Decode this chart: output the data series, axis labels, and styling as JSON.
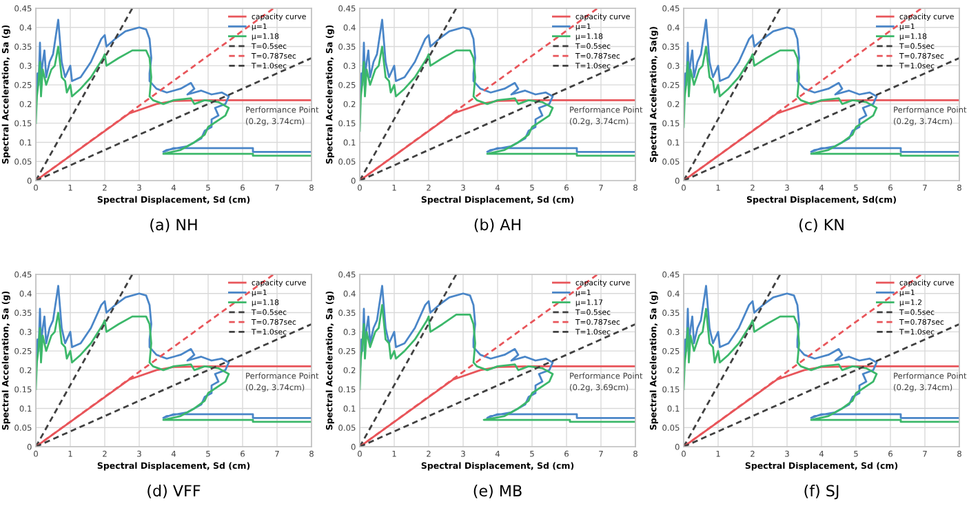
{
  "chart_data": [
    {
      "type": "line",
      "title": "(a) NH",
      "xlabel": "Spectral Displacement, Sd (cm)",
      "ylabel": "Spectral Acceleration, Sa (g)",
      "xlim": [
        0,
        8
      ],
      "ylim": [
        0,
        0.45
      ],
      "xticks": [
        0,
        1,
        2,
        3,
        4,
        5,
        6,
        7,
        8
      ],
      "yticks": [
        0,
        0.05,
        0.1,
        0.15,
        0.2,
        0.25,
        0.3,
        0.35,
        0.4,
        0.45
      ],
      "grid": true,
      "legend": "top right",
      "series": [
        {
          "name": "capacity curve",
          "color": "#e8555a",
          "x": [
            0,
            2.7,
            3.5,
            4,
            5,
            8
          ],
          "values": [
            0,
            0.175,
            0.2,
            0.208,
            0.21,
            0.21
          ]
        },
        {
          "name": "μ=1",
          "color": "#4a86c8",
          "x": [
            0,
            0.02,
            0.05,
            0.08,
            0.12,
            0.15,
            0.2,
            0.25,
            0.3,
            0.4,
            0.5,
            0.65,
            0.75,
            0.85,
            1.0,
            1.05,
            1.3,
            1.6,
            1.9,
            2.0,
            2.05,
            2.3,
            2.6,
            3.0,
            3.2,
            3.3,
            3.35,
            3.3,
            3.3,
            3.5,
            3.8,
            4.2,
            4.5,
            4.6,
            4.4,
            4.8,
            5.1,
            5.4,
            5.6,
            5.5,
            5.2,
            5.3,
            5.1,
            5.1,
            4.9,
            4.8,
            4.4,
            3.8,
            3.7,
            4.0,
            6.3,
            6.3,
            8.0
          ],
          "values": [
            0.18,
            0.22,
            0.28,
            0.25,
            0.36,
            0.27,
            0.31,
            0.34,
            0.27,
            0.31,
            0.33,
            0.42,
            0.31,
            0.27,
            0.3,
            0.26,
            0.27,
            0.31,
            0.37,
            0.38,
            0.35,
            0.37,
            0.39,
            0.4,
            0.395,
            0.37,
            0.32,
            0.28,
            0.26,
            0.24,
            0.23,
            0.24,
            0.255,
            0.24,
            0.225,
            0.235,
            0.225,
            0.23,
            0.22,
            0.2,
            0.19,
            0.17,
            0.16,
            0.14,
            0.13,
            0.11,
            0.09,
            0.08,
            0.075,
            0.085,
            0.085,
            0.075,
            0.075
          ]
        },
        {
          "name": "μ=1.18",
          "color": "#3cb86a",
          "x": [
            0,
            0.03,
            0.07,
            0.12,
            0.15,
            0.2,
            0.3,
            0.45,
            0.55,
            0.65,
            0.75,
            0.85,
            0.9,
            1.0,
            1.05,
            1.3,
            1.6,
            1.95,
            2.0,
            2.05,
            2.4,
            2.8,
            3.2,
            3.3,
            3.35,
            3.3,
            3.4,
            3.7,
            4.0,
            4.5,
            4.6,
            4.9,
            5.3,
            5.6,
            5.5,
            5.0,
            4.9,
            4.6,
            4.2,
            3.7,
            6.3,
            6.3,
            8.0
          ],
          "values": [
            0.15,
            0.22,
            0.25,
            0.31,
            0.22,
            0.29,
            0.25,
            0.29,
            0.3,
            0.35,
            0.27,
            0.26,
            0.23,
            0.25,
            0.22,
            0.24,
            0.27,
            0.32,
            0.33,
            0.3,
            0.32,
            0.34,
            0.34,
            0.32,
            0.27,
            0.22,
            0.21,
            0.2,
            0.21,
            0.215,
            0.2,
            0.21,
            0.205,
            0.19,
            0.17,
            0.14,
            0.12,
            0.1,
            0.08,
            0.07,
            0.07,
            0.065,
            0.065
          ]
        },
        {
          "name": "T=0.5sec",
          "color": "#404040",
          "line_style": "dashed",
          "x": [
            0,
            2.8
          ],
          "values": [
            0,
            0.45
          ]
        },
        {
          "name": "T=0.787sec",
          "color": "#e8555a",
          "line_style": "dashed",
          "x": [
            0,
            6.9
          ],
          "values": [
            0,
            0.45
          ]
        },
        {
          "name": "T=1.0sec",
          "color": "#404040",
          "line_style": "dashed",
          "x": [
            0,
            8
          ],
          "values": [
            0,
            0.32
          ]
        }
      ],
      "annotations": [
        "Performance Point\n(0.2g, 3.74cm)"
      ]
    },
    {
      "type": "line",
      "title": "(b) AH",
      "xlabel": "Spectral Displacement, Sd (cm)",
      "ylabel": "Spectral Acceleration, Sa (g)",
      "xlim": [
        0,
        8
      ],
      "ylim": [
        0,
        0.45
      ],
      "xticks": [
        0,
        1,
        2,
        3,
        4,
        5,
        6,
        7,
        8
      ],
      "yticks": [
        0,
        0.05,
        0.1,
        0.15,
        0.2,
        0.25,
        0.3,
        0.35,
        0.4,
        0.45
      ],
      "grid": true,
      "legend": "top right",
      "series": [
        {
          "name": "capacity curve",
          "color": "#e8555a",
          "x": [
            0,
            2.7,
            3.5,
            4,
            5,
            8
          ],
          "values": [
            0,
            0.175,
            0.2,
            0.208,
            0.21,
            0.21
          ]
        },
        {
          "name": "μ=1",
          "color": "#4a86c8",
          "x": [
            0,
            0.02,
            0.05,
            0.08,
            0.12,
            0.15,
            0.2,
            0.25,
            0.3,
            0.4,
            0.5,
            0.65,
            0.75,
            0.85,
            1.0,
            1.05,
            1.3,
            1.6,
            1.9,
            2.0,
            2.05,
            2.3,
            2.6,
            3.0,
            3.2,
            3.3,
            3.35,
            3.3,
            3.3,
            3.5,
            3.8,
            4.2,
            4.5,
            4.6,
            4.4,
            4.8,
            5.1,
            5.4,
            5.6,
            5.5,
            5.2,
            5.3,
            5.1,
            5.1,
            4.9,
            4.8,
            4.4,
            3.8,
            3.7,
            4.0,
            6.3,
            6.3,
            8.0
          ],
          "values": [
            0.18,
            0.22,
            0.28,
            0.25,
            0.36,
            0.27,
            0.31,
            0.34,
            0.27,
            0.31,
            0.33,
            0.42,
            0.31,
            0.27,
            0.3,
            0.26,
            0.27,
            0.31,
            0.37,
            0.38,
            0.35,
            0.37,
            0.39,
            0.4,
            0.395,
            0.37,
            0.32,
            0.28,
            0.26,
            0.24,
            0.23,
            0.24,
            0.255,
            0.24,
            0.225,
            0.235,
            0.225,
            0.23,
            0.22,
            0.2,
            0.19,
            0.17,
            0.16,
            0.14,
            0.13,
            0.11,
            0.09,
            0.08,
            0.075,
            0.085,
            0.085,
            0.075,
            0.075
          ]
        },
        {
          "name": "μ=1.18",
          "color": "#3cb86a",
          "x": [
            0,
            0.03,
            0.07,
            0.12,
            0.15,
            0.2,
            0.3,
            0.45,
            0.55,
            0.65,
            0.75,
            0.85,
            0.9,
            1.0,
            1.05,
            1.3,
            1.6,
            1.95,
            2.0,
            2.05,
            2.4,
            2.8,
            3.2,
            3.3,
            3.35,
            3.3,
            3.4,
            3.7,
            4.0,
            4.5,
            4.6,
            4.9,
            5.3,
            5.6,
            5.5,
            5.0,
            4.9,
            4.6,
            4.2,
            3.7,
            6.3,
            6.3,
            8.0
          ],
          "values": [
            0.13,
            0.22,
            0.25,
            0.31,
            0.22,
            0.29,
            0.25,
            0.29,
            0.3,
            0.35,
            0.27,
            0.26,
            0.23,
            0.25,
            0.22,
            0.24,
            0.27,
            0.32,
            0.33,
            0.3,
            0.32,
            0.34,
            0.34,
            0.32,
            0.27,
            0.22,
            0.21,
            0.2,
            0.21,
            0.215,
            0.2,
            0.21,
            0.205,
            0.19,
            0.17,
            0.14,
            0.12,
            0.1,
            0.08,
            0.07,
            0.07,
            0.065,
            0.065
          ]
        },
        {
          "name": "T=0.5sec",
          "color": "#404040",
          "line_style": "dashed",
          "x": [
            0,
            2.8
          ],
          "values": [
            0,
            0.45
          ]
        },
        {
          "name": "T=0.787sec",
          "color": "#e8555a",
          "line_style": "dashed",
          "x": [
            0,
            6.9
          ],
          "values": [
            0,
            0.45
          ]
        },
        {
          "name": "T=1.0sec",
          "color": "#404040",
          "line_style": "dashed",
          "x": [
            0,
            8
          ],
          "values": [
            0,
            0.32
          ]
        }
      ],
      "annotations": [
        "Performance Point\n(0.2g, 3.74cm)"
      ]
    },
    {
      "type": "line",
      "title": "(c) KN",
      "xlabel": "Spectral Displacement, Sd(cm)",
      "ylabel": "Spectral Acceleration, Sa(g)",
      "xlim": [
        0,
        8
      ],
      "ylim": [
        0,
        0.45
      ],
      "xticks": [
        0,
        1,
        2,
        3,
        4,
        5,
        6,
        7,
        8
      ],
      "yticks": [
        0,
        0.05,
        0.1,
        0.15,
        0.2,
        0.25,
        0.3,
        0.35,
        0.4,
        0.45
      ],
      "grid": true,
      "legend": "top right",
      "series": [
        {
          "name": "capacity curve",
          "color": "#e8555a",
          "x": [
            0,
            2.7,
            3.5,
            4,
            5,
            8
          ],
          "values": [
            0,
            0.175,
            0.2,
            0.208,
            0.21,
            0.21
          ]
        },
        {
          "name": "μ=1",
          "color": "#4a86c8",
          "x": [
            0,
            0.02,
            0.05,
            0.08,
            0.12,
            0.15,
            0.2,
            0.25,
            0.3,
            0.4,
            0.5,
            0.65,
            0.75,
            0.85,
            1.0,
            1.05,
            1.3,
            1.6,
            1.9,
            2.0,
            2.05,
            2.3,
            2.6,
            3.0,
            3.2,
            3.3,
            3.35,
            3.3,
            3.3,
            3.5,
            3.8,
            4.2,
            4.5,
            4.6,
            4.4,
            4.8,
            5.1,
            5.4,
            5.6,
            5.5,
            5.2,
            5.3,
            5.1,
            5.1,
            4.9,
            4.8,
            4.4,
            3.8,
            3.7,
            4.0,
            6.3,
            6.3,
            8.0
          ],
          "values": [
            0.18,
            0.22,
            0.28,
            0.25,
            0.36,
            0.27,
            0.31,
            0.34,
            0.27,
            0.31,
            0.33,
            0.42,
            0.31,
            0.27,
            0.3,
            0.26,
            0.27,
            0.31,
            0.37,
            0.38,
            0.35,
            0.37,
            0.39,
            0.4,
            0.395,
            0.37,
            0.32,
            0.28,
            0.26,
            0.24,
            0.23,
            0.24,
            0.255,
            0.24,
            0.225,
            0.235,
            0.225,
            0.23,
            0.22,
            0.2,
            0.19,
            0.17,
            0.16,
            0.14,
            0.13,
            0.11,
            0.09,
            0.08,
            0.075,
            0.085,
            0.085,
            0.075,
            0.075
          ]
        },
        {
          "name": "μ=1.18",
          "color": "#3cb86a",
          "x": [
            0,
            0.03,
            0.07,
            0.12,
            0.15,
            0.2,
            0.3,
            0.45,
            0.55,
            0.65,
            0.75,
            0.85,
            0.9,
            1.0,
            1.05,
            1.3,
            1.6,
            1.95,
            2.0,
            2.05,
            2.4,
            2.8,
            3.2,
            3.3,
            3.35,
            3.3,
            3.4,
            3.7,
            4.0,
            4.5,
            4.6,
            4.9,
            5.3,
            5.6,
            5.5,
            5.0,
            4.9,
            4.6,
            4.2,
            3.7,
            6.3,
            6.3,
            8.0
          ],
          "values": [
            0.14,
            0.22,
            0.25,
            0.31,
            0.22,
            0.29,
            0.25,
            0.29,
            0.3,
            0.35,
            0.27,
            0.26,
            0.23,
            0.25,
            0.22,
            0.24,
            0.27,
            0.32,
            0.33,
            0.3,
            0.32,
            0.34,
            0.34,
            0.32,
            0.27,
            0.22,
            0.21,
            0.2,
            0.21,
            0.215,
            0.2,
            0.21,
            0.205,
            0.19,
            0.17,
            0.14,
            0.12,
            0.1,
            0.08,
            0.07,
            0.07,
            0.065,
            0.065
          ]
        },
        {
          "name": "T=0.5sec",
          "color": "#404040",
          "line_style": "dashed",
          "x": [
            0,
            2.8
          ],
          "values": [
            0,
            0.45
          ]
        },
        {
          "name": "T=0.787sec",
          "color": "#e8555a",
          "line_style": "dashed",
          "x": [
            0,
            6.9
          ],
          "values": [
            0,
            0.45
          ]
        },
        {
          "name": "T=1.0sec",
          "color": "#404040",
          "line_style": "dashed",
          "x": [
            0,
            8
          ],
          "values": [
            0,
            0.32
          ]
        }
      ],
      "annotations": [
        "Performance Point\n(0.2g, 3.74cm)"
      ]
    },
    {
      "type": "line",
      "title": "(d) VFF",
      "xlabel": "Spectral Displacement, Sd (cm)",
      "ylabel": "Spectral Acceleration, Sa (g)",
      "xlim": [
        0,
        8
      ],
      "ylim": [
        0,
        0.45
      ],
      "xticks": [
        0,
        1,
        2,
        3,
        4,
        5,
        6,
        7,
        8
      ],
      "yticks": [
        0,
        0.05,
        0.1,
        0.15,
        0.2,
        0.25,
        0.3,
        0.35,
        0.4,
        0.45
      ],
      "grid": true,
      "legend": "top right",
      "series": [
        {
          "name": "capacity curve",
          "color": "#e8555a",
          "x": [
            0,
            2.7,
            3.5,
            4,
            5,
            8
          ],
          "values": [
            0,
            0.175,
            0.2,
            0.208,
            0.21,
            0.21
          ]
        },
        {
          "name": "μ=1",
          "color": "#4a86c8",
          "x": [
            0,
            0.02,
            0.05,
            0.08,
            0.12,
            0.15,
            0.2,
            0.25,
            0.3,
            0.4,
            0.5,
            0.65,
            0.75,
            0.85,
            1.0,
            1.05,
            1.3,
            1.6,
            1.9,
            2.0,
            2.05,
            2.3,
            2.6,
            3.0,
            3.2,
            3.3,
            3.35,
            3.3,
            3.3,
            3.5,
            3.8,
            4.2,
            4.5,
            4.6,
            4.4,
            4.8,
            5.1,
            5.4,
            5.6,
            5.5,
            5.2,
            5.3,
            5.1,
            5.1,
            4.9,
            4.8,
            4.4,
            3.8,
            3.7,
            4.0,
            6.3,
            6.3,
            8.0
          ],
          "values": [
            0.18,
            0.22,
            0.28,
            0.25,
            0.36,
            0.27,
            0.31,
            0.34,
            0.27,
            0.31,
            0.33,
            0.42,
            0.31,
            0.27,
            0.3,
            0.26,
            0.27,
            0.31,
            0.37,
            0.38,
            0.35,
            0.37,
            0.39,
            0.4,
            0.395,
            0.37,
            0.32,
            0.28,
            0.26,
            0.24,
            0.23,
            0.24,
            0.255,
            0.24,
            0.225,
            0.235,
            0.225,
            0.23,
            0.22,
            0.2,
            0.19,
            0.17,
            0.16,
            0.14,
            0.13,
            0.11,
            0.09,
            0.08,
            0.075,
            0.085,
            0.085,
            0.075,
            0.075
          ]
        },
        {
          "name": "μ=1.18",
          "color": "#3cb86a",
          "x": [
            0,
            0.03,
            0.07,
            0.12,
            0.15,
            0.2,
            0.3,
            0.45,
            0.55,
            0.65,
            0.75,
            0.85,
            0.9,
            1.0,
            1.05,
            1.3,
            1.6,
            1.95,
            2.0,
            2.05,
            2.4,
            2.8,
            3.2,
            3.3,
            3.35,
            3.3,
            3.4,
            3.7,
            4.0,
            4.5,
            4.6,
            4.9,
            5.3,
            5.6,
            5.5,
            5.0,
            4.9,
            4.6,
            4.2,
            3.7,
            6.3,
            6.3,
            8.0
          ],
          "values": [
            0.15,
            0.22,
            0.25,
            0.31,
            0.22,
            0.29,
            0.25,
            0.29,
            0.3,
            0.35,
            0.27,
            0.26,
            0.23,
            0.25,
            0.22,
            0.24,
            0.27,
            0.32,
            0.33,
            0.3,
            0.32,
            0.34,
            0.34,
            0.32,
            0.27,
            0.22,
            0.21,
            0.2,
            0.21,
            0.215,
            0.2,
            0.21,
            0.205,
            0.19,
            0.17,
            0.14,
            0.12,
            0.1,
            0.08,
            0.07,
            0.07,
            0.065,
            0.065
          ]
        },
        {
          "name": "T=0.5sec",
          "color": "#404040",
          "line_style": "dashed",
          "x": [
            0,
            2.8
          ],
          "values": [
            0,
            0.45
          ]
        },
        {
          "name": "T=0.787sec",
          "color": "#e8555a",
          "line_style": "dashed",
          "x": [
            0,
            6.9
          ],
          "values": [
            0,
            0.45
          ]
        },
        {
          "name": "T=1.0sec",
          "color": "#404040",
          "line_style": "dashed",
          "x": [
            0,
            8
          ],
          "values": [
            0,
            0.32
          ]
        }
      ],
      "annotations": [
        "Performance Point\n(0.2g, 3.74cm)"
      ]
    },
    {
      "type": "line",
      "title": "(e) MB",
      "xlabel": "Spectral Displacement, Sd (cm)",
      "ylabel": "Spectral Acceleration, Sa (g)",
      "xlim": [
        0,
        8
      ],
      "ylim": [
        0,
        0.45
      ],
      "xticks": [
        0,
        1,
        2,
        3,
        4,
        5,
        6,
        7,
        8
      ],
      "yticks": [
        0,
        0.05,
        0.1,
        0.15,
        0.2,
        0.25,
        0.3,
        0.35,
        0.4,
        0.45
      ],
      "grid": true,
      "legend": "top right",
      "series": [
        {
          "name": "capacity curve",
          "color": "#e8555a",
          "x": [
            0,
            2.7,
            3.5,
            4,
            5,
            8
          ],
          "values": [
            0,
            0.175,
            0.2,
            0.208,
            0.21,
            0.21
          ]
        },
        {
          "name": "μ=1",
          "color": "#4a86c8",
          "x": [
            0,
            0.02,
            0.05,
            0.08,
            0.12,
            0.15,
            0.2,
            0.25,
            0.3,
            0.4,
            0.5,
            0.65,
            0.75,
            0.85,
            1.0,
            1.05,
            1.3,
            1.6,
            1.9,
            2.0,
            2.05,
            2.3,
            2.6,
            3.0,
            3.2,
            3.3,
            3.35,
            3.3,
            3.3,
            3.5,
            3.8,
            4.2,
            4.5,
            4.6,
            4.4,
            4.8,
            5.1,
            5.4,
            5.6,
            5.5,
            5.2,
            5.3,
            5.1,
            5.1,
            4.9,
            4.8,
            4.4,
            3.8,
            3.7,
            4.0,
            6.3,
            6.3,
            8.0
          ],
          "values": [
            0.18,
            0.22,
            0.28,
            0.25,
            0.36,
            0.27,
            0.31,
            0.34,
            0.27,
            0.31,
            0.33,
            0.42,
            0.31,
            0.27,
            0.3,
            0.26,
            0.27,
            0.31,
            0.37,
            0.38,
            0.35,
            0.37,
            0.39,
            0.4,
            0.395,
            0.37,
            0.32,
            0.28,
            0.26,
            0.24,
            0.23,
            0.24,
            0.255,
            0.24,
            0.225,
            0.235,
            0.225,
            0.23,
            0.22,
            0.2,
            0.19,
            0.17,
            0.16,
            0.14,
            0.13,
            0.11,
            0.09,
            0.08,
            0.075,
            0.085,
            0.085,
            0.075,
            0.075
          ]
        },
        {
          "name": "μ=1.17",
          "color": "#3cb86a",
          "x": [
            0,
            0.03,
            0.07,
            0.12,
            0.15,
            0.2,
            0.3,
            0.45,
            0.55,
            0.65,
            0.75,
            0.85,
            0.9,
            1.0,
            1.05,
            1.3,
            1.6,
            1.95,
            2.0,
            2.05,
            2.4,
            2.8,
            3.2,
            3.3,
            3.35,
            3.3,
            3.4,
            3.7,
            4.0,
            4.5,
            4.6,
            4.9,
            5.3,
            5.6,
            5.5,
            5.0,
            4.9,
            4.6,
            4.2,
            3.6,
            6.1,
            6.1,
            8.0
          ],
          "values": [
            0.15,
            0.23,
            0.26,
            0.32,
            0.23,
            0.3,
            0.26,
            0.3,
            0.31,
            0.37,
            0.28,
            0.27,
            0.23,
            0.25,
            0.23,
            0.25,
            0.28,
            0.33,
            0.34,
            0.3,
            0.32,
            0.345,
            0.345,
            0.32,
            0.27,
            0.22,
            0.21,
            0.2,
            0.21,
            0.215,
            0.2,
            0.21,
            0.205,
            0.19,
            0.17,
            0.14,
            0.12,
            0.1,
            0.08,
            0.07,
            0.07,
            0.065,
            0.065
          ]
        },
        {
          "name": "T=0.5sec",
          "color": "#404040",
          "line_style": "dashed",
          "x": [
            0,
            2.8
          ],
          "values": [
            0,
            0.45
          ]
        },
        {
          "name": "T=0.787sec",
          "color": "#e8555a",
          "line_style": "dashed",
          "x": [
            0,
            6.9
          ],
          "values": [
            0,
            0.45
          ]
        },
        {
          "name": "T=1.0sec",
          "color": "#404040",
          "line_style": "dashed",
          "x": [
            0,
            8
          ],
          "values": [
            0,
            0.32
          ]
        }
      ],
      "annotations": [
        "Performance Point\n(0.2g, 3.69cm)"
      ]
    },
    {
      "type": "line",
      "title": "(f) SJ",
      "xlabel": "Spectral Displacement, Sd (cm)",
      "ylabel": "Spectral Acceleration, Sa (g)",
      "xlim": [
        0,
        8
      ],
      "ylim": [
        0,
        0.45
      ],
      "xticks": [
        0,
        1,
        2,
        3,
        4,
        5,
        6,
        7,
        8
      ],
      "yticks": [
        0,
        0.05,
        0.1,
        0.15,
        0.2,
        0.25,
        0.3,
        0.35,
        0.4,
        0.45
      ],
      "grid": true,
      "legend": "top right",
      "series": [
        {
          "name": "capacity curve",
          "color": "#e8555a",
          "x": [
            0,
            2.7,
            3.5,
            4,
            5,
            8
          ],
          "values": [
            0,
            0.175,
            0.2,
            0.208,
            0.21,
            0.21
          ]
        },
        {
          "name": "μ=1",
          "color": "#4a86c8",
          "x": [
            0,
            0.02,
            0.05,
            0.08,
            0.12,
            0.15,
            0.2,
            0.25,
            0.3,
            0.4,
            0.5,
            0.65,
            0.75,
            0.85,
            1.0,
            1.05,
            1.3,
            1.6,
            1.9,
            2.0,
            2.05,
            2.3,
            2.6,
            3.0,
            3.2,
            3.3,
            3.35,
            3.3,
            3.3,
            3.5,
            3.8,
            4.2,
            4.5,
            4.6,
            4.4,
            4.8,
            5.1,
            5.4,
            5.6,
            5.5,
            5.2,
            5.3,
            5.1,
            5.1,
            4.9,
            4.8,
            4.4,
            3.8,
            3.7,
            4.0,
            6.3,
            6.3,
            8.0
          ],
          "values": [
            0.18,
            0.22,
            0.28,
            0.25,
            0.36,
            0.27,
            0.31,
            0.34,
            0.27,
            0.31,
            0.33,
            0.42,
            0.31,
            0.27,
            0.3,
            0.26,
            0.27,
            0.31,
            0.37,
            0.38,
            0.35,
            0.37,
            0.39,
            0.4,
            0.395,
            0.37,
            0.32,
            0.28,
            0.26,
            0.24,
            0.23,
            0.24,
            0.255,
            0.24,
            0.225,
            0.235,
            0.225,
            0.23,
            0.22,
            0.2,
            0.19,
            0.17,
            0.16,
            0.14,
            0.13,
            0.11,
            0.09,
            0.08,
            0.075,
            0.085,
            0.085,
            0.075,
            0.075
          ]
        },
        {
          "name": "μ=1.2",
          "color": "#3cb86a",
          "x": [
            0,
            0.03,
            0.07,
            0.12,
            0.15,
            0.2,
            0.3,
            0.45,
            0.55,
            0.65,
            0.75,
            0.85,
            0.9,
            1.0,
            1.05,
            1.3,
            1.6,
            1.95,
            2.0,
            2.05,
            2.4,
            2.8,
            3.2,
            3.3,
            3.35,
            3.3,
            3.4,
            3.7,
            4.0,
            4.5,
            4.6,
            4.9,
            5.3,
            5.6,
            5.5,
            5.0,
            4.9,
            4.6,
            4.2,
            3.7,
            6.3,
            6.3,
            8.0
          ],
          "values": [
            0.15,
            0.22,
            0.25,
            0.31,
            0.22,
            0.29,
            0.25,
            0.29,
            0.3,
            0.36,
            0.27,
            0.26,
            0.22,
            0.25,
            0.22,
            0.24,
            0.27,
            0.32,
            0.33,
            0.3,
            0.32,
            0.34,
            0.34,
            0.32,
            0.27,
            0.22,
            0.21,
            0.2,
            0.21,
            0.215,
            0.2,
            0.21,
            0.205,
            0.19,
            0.17,
            0.14,
            0.12,
            0.1,
            0.08,
            0.07,
            0.07,
            0.065,
            0.065
          ]
        },
        {
          "name": "T=0.5sec",
          "color": "#404040",
          "line_style": "dashed",
          "x": [
            0,
            2.8
          ],
          "values": [
            0,
            0.45
          ]
        },
        {
          "name": "T=0.787sec",
          "color": "#e8555a",
          "line_style": "dashed",
          "x": [
            0,
            6.9
          ],
          "values": [
            0,
            0.45
          ]
        },
        {
          "name": "T=1.0sec",
          "color": "#404040",
          "line_style": "dashed",
          "x": [
            0,
            8
          ],
          "values": [
            0,
            0.32
          ]
        }
      ],
      "annotations": [
        "Performance Point\n(0.2g, 3.74cm)"
      ]
    }
  ]
}
